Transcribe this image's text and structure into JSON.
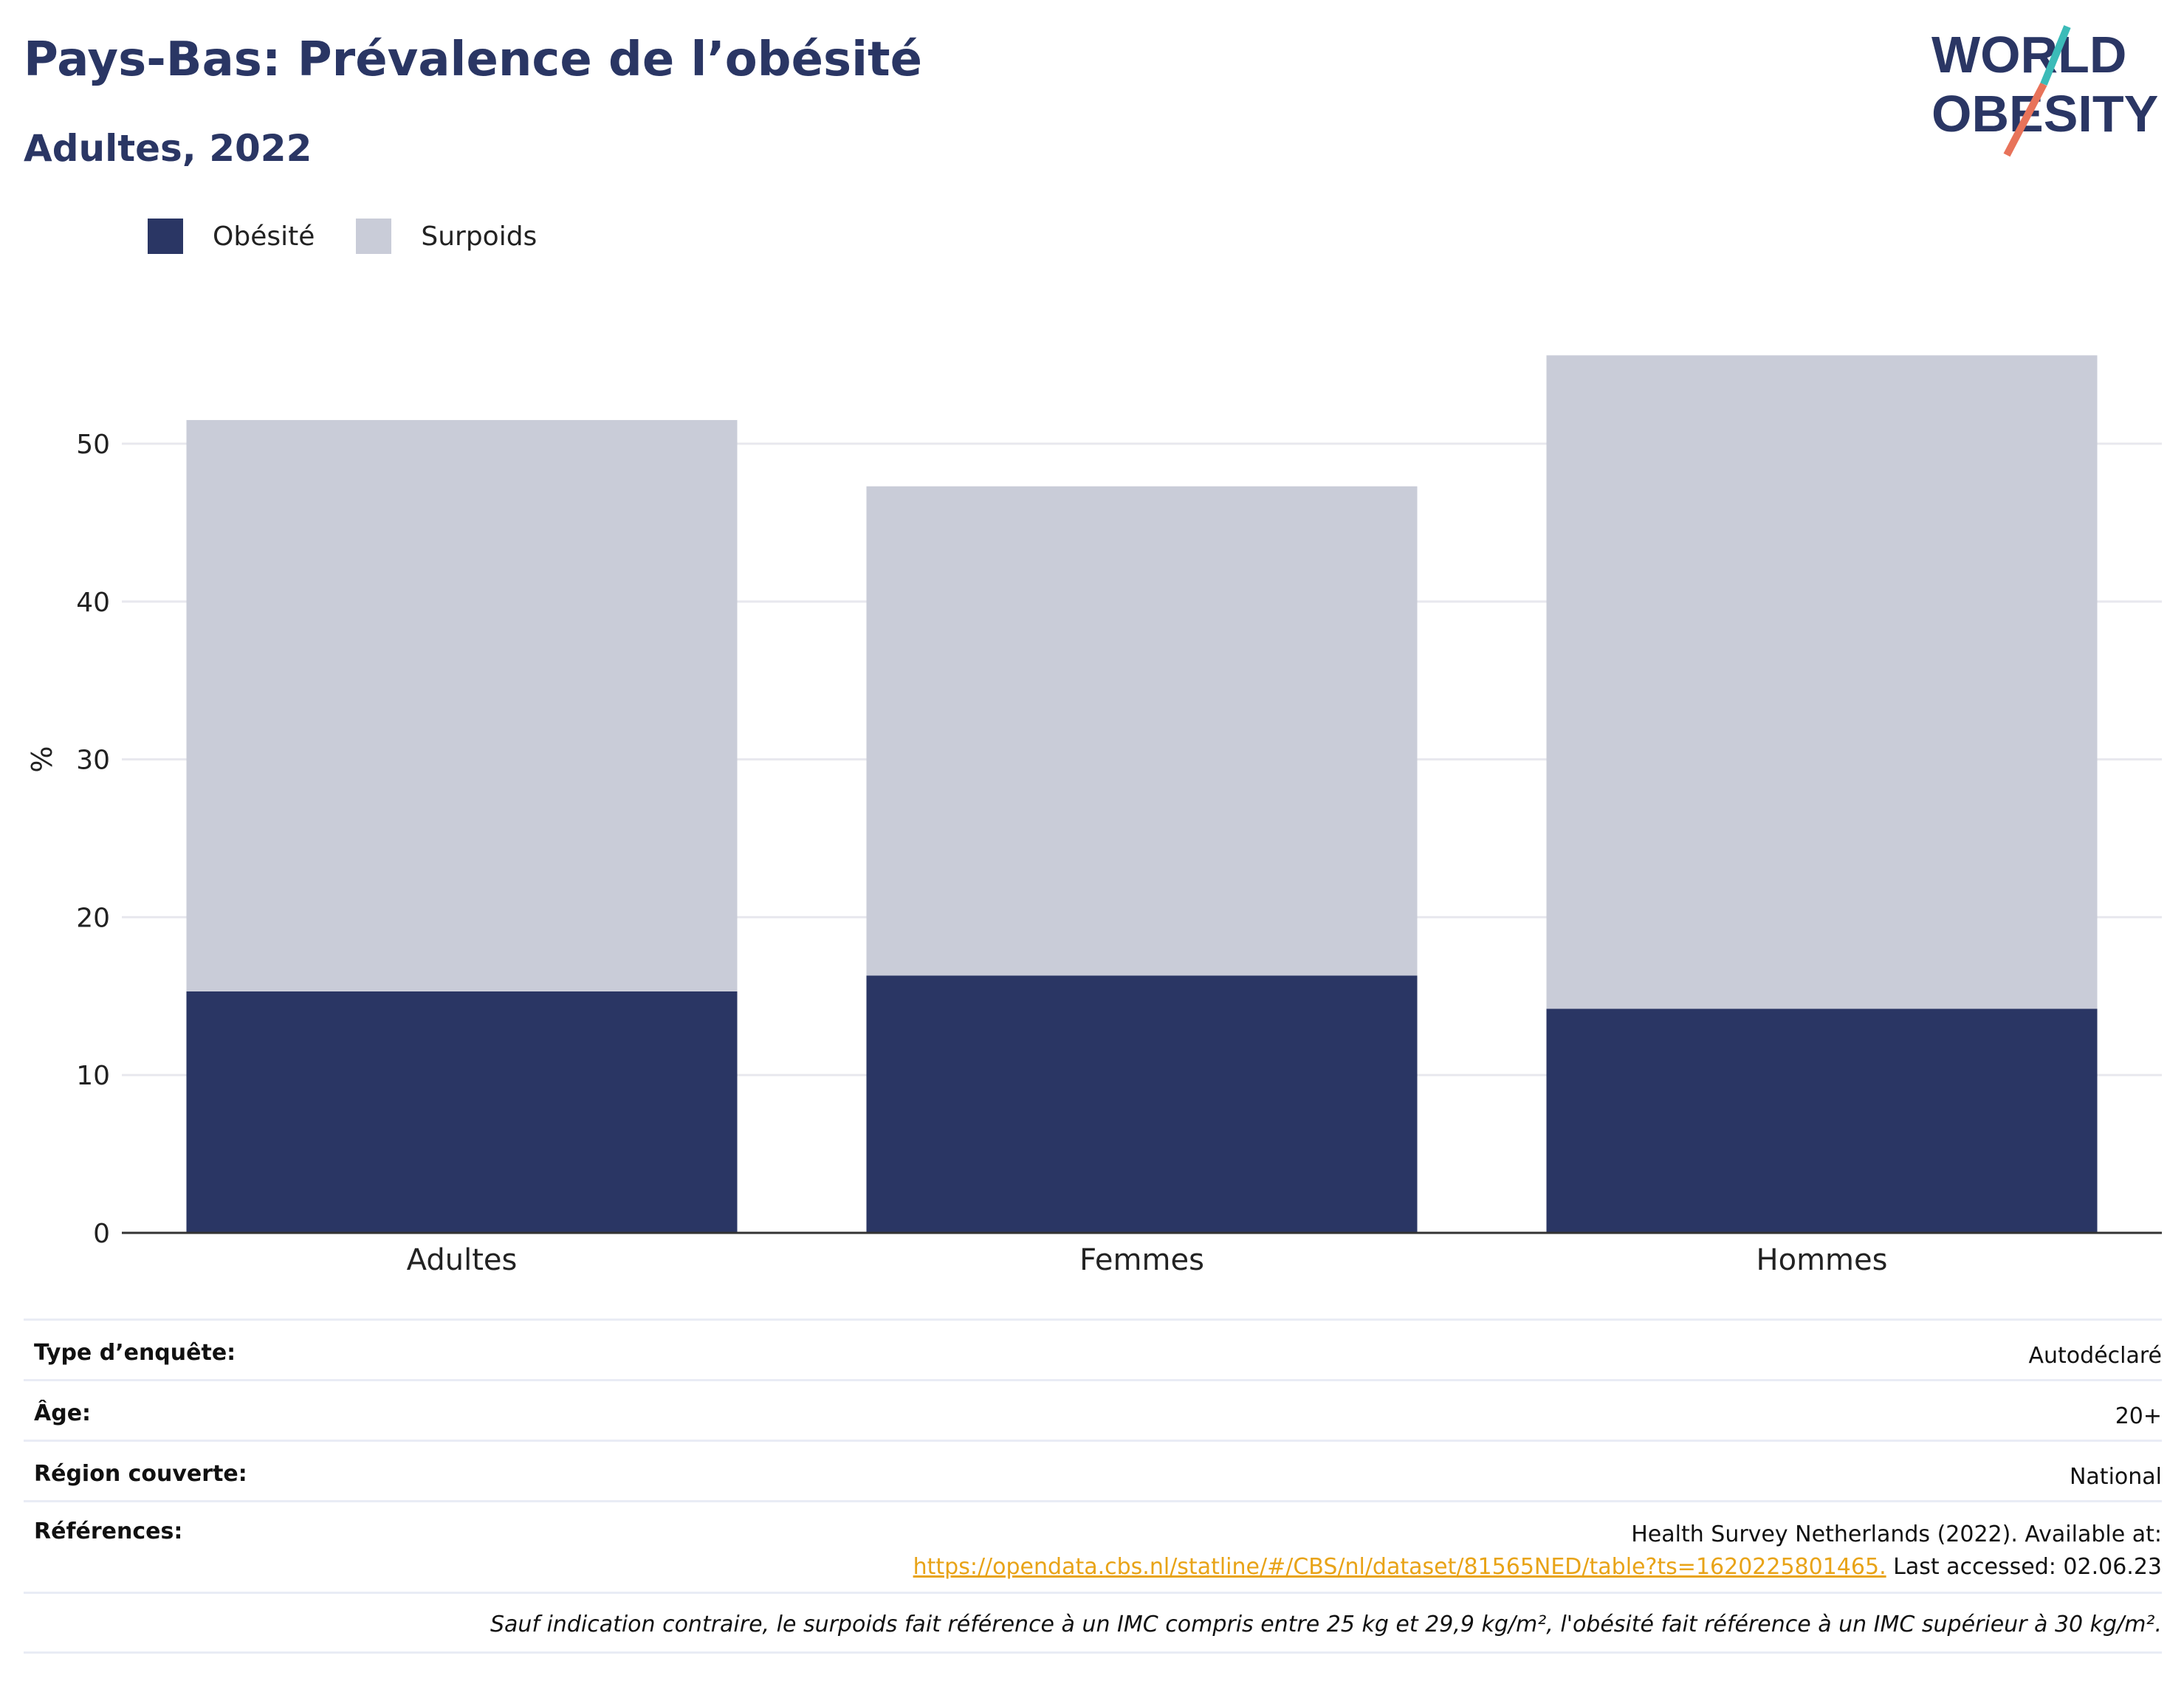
{
  "header": {
    "title": "Pays-Bas: Prévalence de l’obésité",
    "subtitle": "Adultes, 2022",
    "logo_line1": "WORLD",
    "logo_line2": "OBESITY"
  },
  "legend": [
    {
      "label": "Obésité",
      "color": "#2a3664"
    },
    {
      "label": "Surpoids",
      "color": "#c9ccd8"
    }
  ],
  "chart_data": {
    "type": "bar",
    "stacked": true,
    "categories": [
      "Adultes",
      "Femmes",
      "Hommes"
    ],
    "series": [
      {
        "name": "Obésité",
        "color": "#2a3664",
        "values": [
          15.3,
          16.3,
          14.2
        ]
      },
      {
        "name": "Surpoids",
        "color": "#c9ccd8",
        "values": [
          36.2,
          31.0,
          41.4
        ]
      }
    ],
    "ylabel": "%",
    "xlabel": "",
    "ylim": [
      0,
      58
    ],
    "yticks": [
      0,
      10,
      20,
      30,
      40,
      50
    ],
    "grid": true,
    "legend_position": "top-left"
  },
  "info": {
    "survey_type_label": "Type d’enquête:",
    "survey_type_value": "Autodéclaré",
    "age_label": "Âge:",
    "age_value": "20+",
    "region_label": "Région couverte:",
    "region_value": "National",
    "references_label": "Références:",
    "references_text": "Health Survey Netherlands (2022). Available at:",
    "references_link": "https://opendata.cbs.nl/statline/#/CBS/nl/dataset/81565NED/table?ts=1620225801465.",
    "references_accessed": " Last accessed: 02.06.23",
    "note": "Sauf indication contraire, le surpoids fait référence à un IMC compris entre 25 kg et 29,9 kg/m², l'obésité fait référence à un IMC supérieur à 30 kg/m²."
  }
}
